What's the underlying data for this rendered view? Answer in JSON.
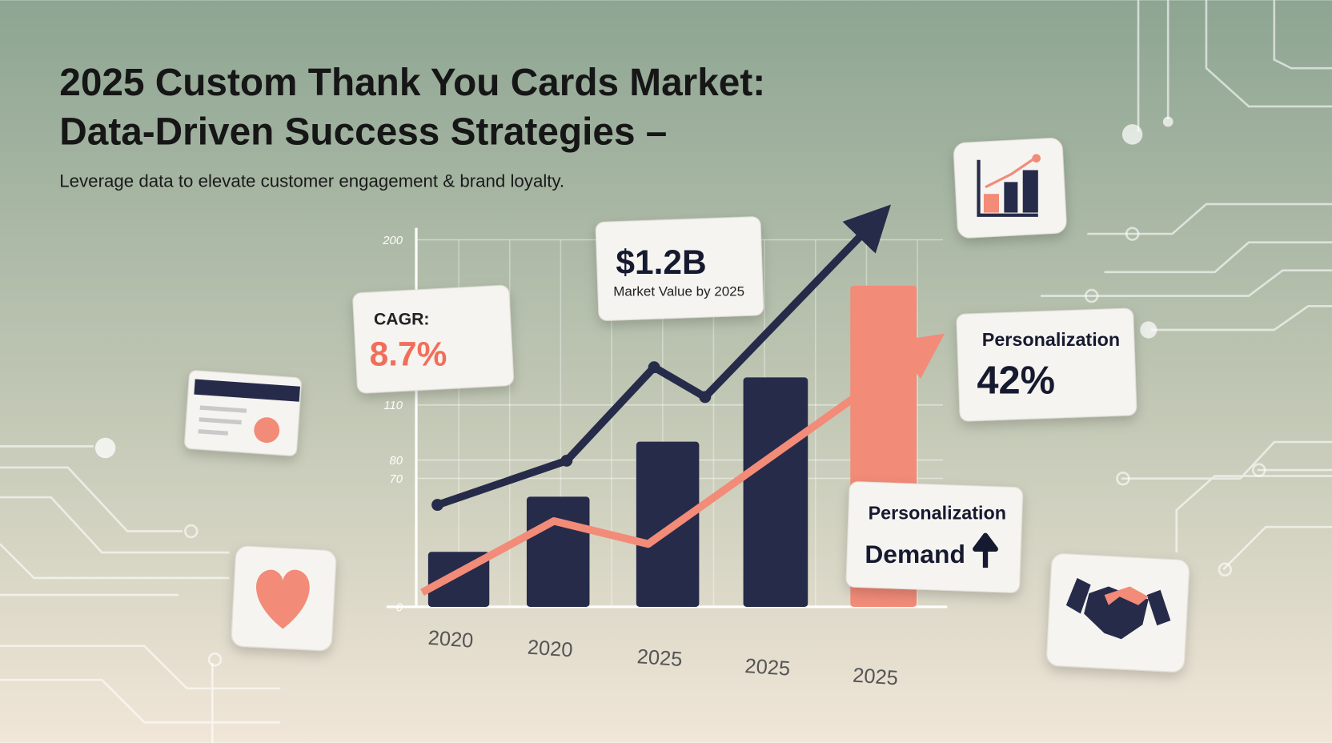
{
  "header": {
    "title_lines": [
      "2025 Custom Thank You Cards Market:",
      "Data-Driven Success Strategies –"
    ],
    "subtitle": "Leverage data to elevate customer engagement & brand loyalty."
  },
  "chart_data": {
    "type": "bar",
    "categories": [
      "2020",
      "2020",
      "2025",
      "2025",
      "2025"
    ],
    "values": [
      30,
      60,
      90,
      125,
      175
    ],
    "colors": [
      "#262b4a",
      "#262b4a",
      "#262b4a",
      "#262b4a",
      "#f28b78"
    ],
    "ylim": [
      0,
      200
    ],
    "yticks": [
      0,
      70,
      80,
      110,
      200
    ],
    "grid": true
  },
  "callouts": {
    "market": {
      "value": "$1.2B",
      "label": "Market Value by 2025"
    },
    "cagr": {
      "label": "CAGR:",
      "value": "8.7%"
    },
    "personalization": {
      "label": "Personalization",
      "value": "42%"
    },
    "demand": {
      "line1": "Personalization",
      "line2": "Demand"
    }
  }
}
